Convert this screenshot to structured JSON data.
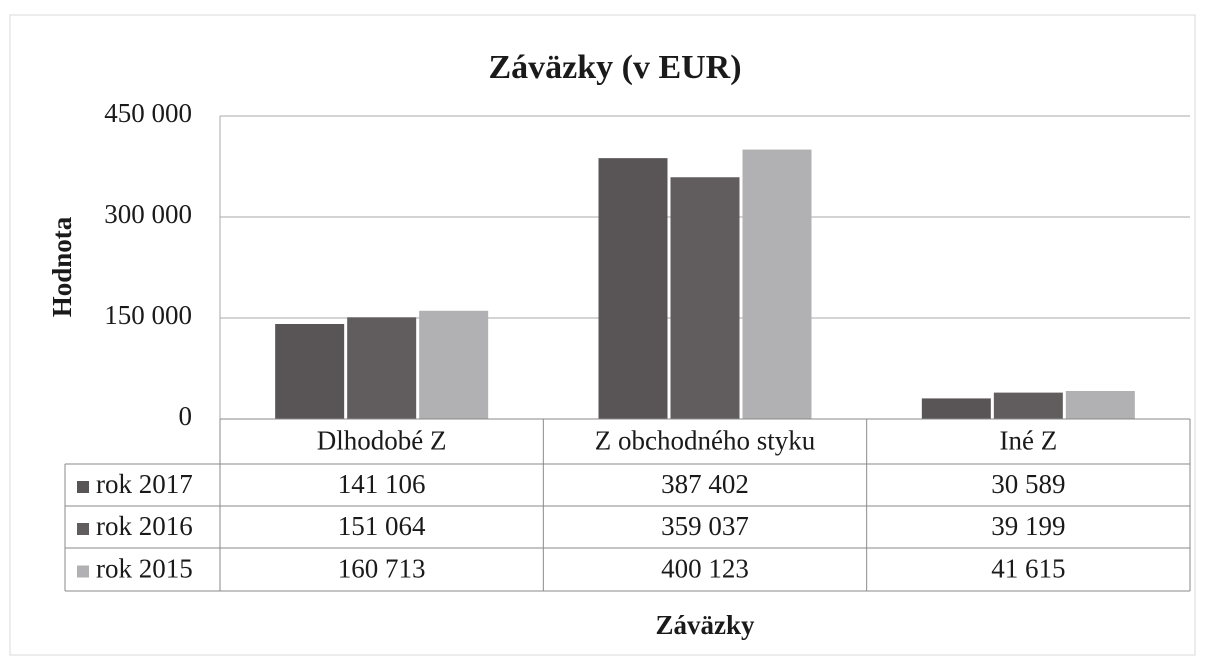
{
  "chart_data": {
    "type": "bar",
    "title": "Záväzky (v EUR)",
    "y_label": "Hodnota",
    "x_label": "Záväzky",
    "categories": [
      "Dlhodobé Z",
      "Z obchodného styku",
      "Iné Z"
    ],
    "series": [
      {
        "name": "rok 2017",
        "color": "#595556",
        "values": [
          141106,
          387402,
          30589
        ],
        "value_labels": [
          "141 106",
          "387 402",
          "30 589"
        ]
      },
      {
        "name": "rok 2016",
        "color": "#615d5e",
        "values": [
          151064,
          359037,
          39199
        ],
        "value_labels": [
          "151 064",
          "359 037",
          "39 199"
        ]
      },
      {
        "name": "rok 2015",
        "color": "#b1b0b2",
        "values": [
          160713,
          400123,
          41615
        ],
        "value_labels": [
          "160 713",
          "400 123",
          "41 615"
        ]
      }
    ],
    "ylim": [
      0,
      450000
    ],
    "yticks": [
      0,
      {
        "value": 150000,
        "label": "150 000"
      },
      {
        "value": 300000,
        "label": "300 000"
      },
      {
        "value": 450000,
        "label": "450 000"
      }
    ],
    "grid": true,
    "data_table": true
  }
}
